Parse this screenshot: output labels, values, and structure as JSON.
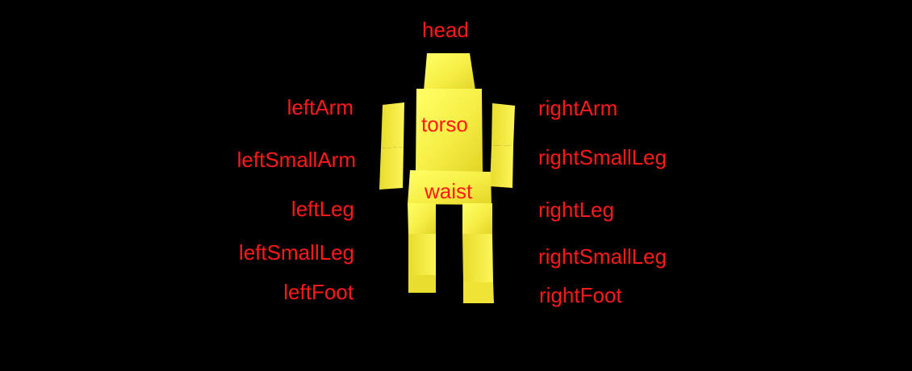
{
  "colors": {
    "background": "#000000",
    "label": "#ff1a1a",
    "body_light": "#ffff66",
    "body_base": "#f2e83a",
    "body_shade": "#d9c91f"
  },
  "labels": {
    "head": "head",
    "torso": "torso",
    "waist": "waist",
    "leftArm": "leftArm",
    "leftSmallArm": "leftSmallArm",
    "leftLeg": "leftLeg",
    "leftSmallLeg": "leftSmallLeg",
    "leftFoot": "leftFoot",
    "rightArm": "rightArm",
    "rightSmallArm": "rightSmallLeg",
    "rightLeg": "rightLeg",
    "rightSmallLeg": "rightSmallLeg",
    "rightFoot": "rightFoot"
  }
}
